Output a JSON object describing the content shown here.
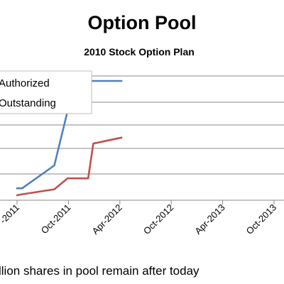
{
  "chart_data": {
    "type": "line",
    "title": "Option Pool",
    "subtitle": "2010 Stock Option Plan",
    "footer_text": "llion shares in pool remain after today",
    "x_tick_labels": [
      "-2011",
      "Oct-2011",
      "Apr-2012",
      "Oct-2012",
      "Apr-2013",
      "Oct-2013"
    ],
    "y_gridline_count": 6,
    "legend_placement": "top-left",
    "series": [
      {
        "name": "Authorized",
        "color": "#4f81bd",
        "points": [
          [
            0,
            0.12
          ],
          [
            0.6,
            0.12
          ],
          [
            4.35,
            0.35
          ],
          [
            6.05,
            0.95
          ],
          [
            8.55,
            1.2
          ],
          [
            12.2,
            1.2
          ]
        ]
      },
      {
        "name": "Outstanding",
        "color": "#c0504d",
        "points": [
          [
            0,
            0.05
          ],
          [
            0.6,
            0.06
          ],
          [
            4.35,
            0.11
          ],
          [
            5.9,
            0.22
          ],
          [
            8.3,
            0.22
          ],
          [
            8.9,
            0.57
          ],
          [
            12.2,
            0.63
          ]
        ]
      }
    ]
  }
}
